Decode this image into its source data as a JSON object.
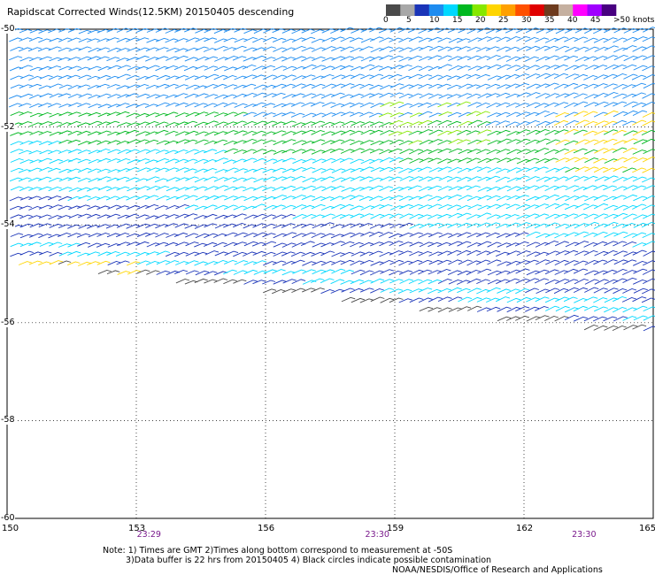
{
  "title": "Rapidscat Corrected Winds(12.5KM) 20150405 descending",
  "legend": {
    "colors": [
      "#4a4a4a",
      "#a8a8a8",
      "#1a34b8",
      "#1e8cf0",
      "#00d8ff",
      "#00b820",
      "#86e800",
      "#ffd500",
      "#ffa000",
      "#ff5000",
      "#e00000",
      "#6e3b1e",
      "#c5b0a0",
      "#ff00ff",
      "#a000ff",
      "#480080"
    ],
    "labels": [
      "0",
      "5",
      "10",
      "15",
      "20",
      "25",
      "30",
      "35",
      "40",
      "45",
      ">50 knots"
    ]
  },
  "axes": {
    "lon_ticks": [
      "150",
      "153",
      "156",
      "159",
      "162",
      "165"
    ],
    "lat_ticks": [
      "-50",
      "-52",
      "-54",
      "-56",
      "-58",
      "-60"
    ],
    "lon_range": [
      150,
      165
    ],
    "lat_range": [
      -50,
      -60
    ]
  },
  "pass_times": [
    {
      "lon": 153.3,
      "label": "23:29"
    },
    {
      "lon": 158.6,
      "label": "23:30"
    },
    {
      "lon": 163.4,
      "label": "23:30"
    }
  ],
  "notes": {
    "line1": "Note: 1) Times are GMT 2)Times along bottom correspond to measurement at -50S",
    "line2": "3)Data buffer is 22 hrs from 20150405 4) Black circles indicate possible contamination",
    "credit": "NOAA/NESDIS/Office of Research and Applications"
  },
  "wind_bands": [
    {
      "lat0": -50.0,
      "lat1": -51.6,
      "color": "#1e8cf0"
    },
    {
      "lat0": -51.6,
      "lat1": -52.3,
      "color": "#00b820"
    },
    {
      "lat0": -52.3,
      "lat1": -53.4,
      "color": "#00d8ff"
    },
    {
      "lat0": -53.4,
      "lat1": -54.3,
      "color": "#1a34b8"
    },
    {
      "lat0": -54.3,
      "lat1": -54.9,
      "color": "#00d8ff"
    },
    {
      "lat0": -54.9,
      "lat1": -55.3,
      "color": "#00b820"
    },
    {
      "lat0": -55.3,
      "lat1": -55.6,
      "color": "#1a34b8"
    },
    {
      "lat0": -55.6,
      "lat1": -55.9,
      "color": "#4a4a4a"
    }
  ]
}
